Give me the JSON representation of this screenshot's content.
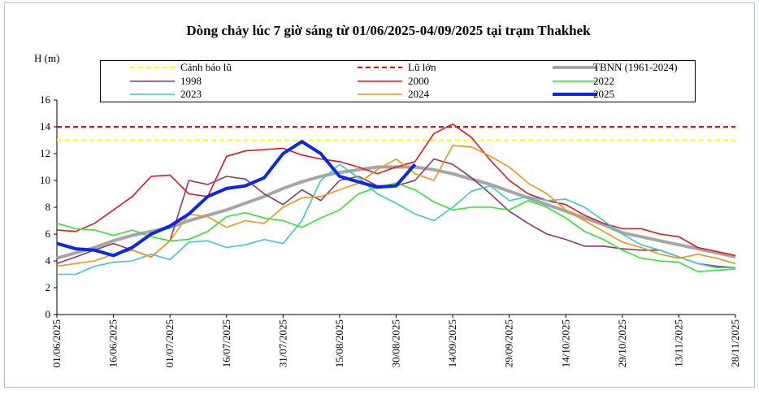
{
  "chart_data": {
    "type": "line",
    "title": "Dòng chảy lúc 7 giờ sáng từ 01/06/2025-04/09/2025 tại trạm Thakhek",
    "y_label": "H (m)",
    "x": [
      "01/06/2025",
      "06/06/2025",
      "11/06/2025",
      "16/06/2025",
      "21/06/2025",
      "26/06/2025",
      "01/07/2025",
      "06/07/2025",
      "11/07/2025",
      "16/07/2025",
      "21/07/2025",
      "26/07/2025",
      "31/07/2025",
      "05/08/2025",
      "10/08/2025",
      "15/08/2025",
      "20/08/2025",
      "25/08/2025",
      "30/08/2025",
      "04/09/2025",
      "09/09/2025",
      "14/09/2025",
      "19/09/2025",
      "24/09/2025",
      "29/09/2025",
      "04/10/2025",
      "09/10/2025",
      "14/10/2025",
      "19/10/2025",
      "24/10/2025",
      "29/10/2025",
      "03/11/2025",
      "08/11/2025",
      "13/11/2025",
      "18/11/2025",
      "23/11/2025",
      "28/11/2025"
    ],
    "xlim": [
      "01/06/2025",
      "28/11/2025"
    ],
    "xticks": [
      "01/06/2025",
      "16/06/2025",
      "01/07/2025",
      "16/07/2025",
      "31/07/2025",
      "15/08/2025",
      "30/08/2025",
      "14/09/2025",
      "29/09/2025",
      "14/10/2025",
      "29/10/2025",
      "13/11/2025",
      "28/11/2025"
    ],
    "ylim": [
      0,
      16
    ],
    "yticks": [
      0,
      2,
      4,
      6,
      8,
      10,
      12,
      14,
      16
    ],
    "grid": false,
    "reference_lines": [
      {
        "name": "Cảnh báo lũ",
        "value": 13,
        "color": "#ffff00"
      },
      {
        "name": "Lũ lớn",
        "value": 14,
        "color": "#ff0000"
      }
    ],
    "series": [
      {
        "name": "TBNN (1961-2024)",
        "color": "#a6a6a6",
        "width": 4,
        "values": [
          4.2,
          4.6,
          5.0,
          5.5,
          5.9,
          6.2,
          6.5,
          7.0,
          7.4,
          7.8,
          8.3,
          8.8,
          9.4,
          9.9,
          10.3,
          10.6,
          10.8,
          11.0,
          11.0,
          11.0,
          10.8,
          10.5,
          10.1,
          9.7,
          9.2,
          8.7,
          8.2,
          7.7,
          7.2,
          6.7,
          6.1,
          5.8,
          5.5,
          5.2,
          4.9,
          4.6,
          4.3
        ]
      },
      {
        "name": "1998",
        "color": "#8b3a6e",
        "width": 1.6,
        "values": [
          3.8,
          4.3,
          4.8,
          5.3,
          4.8,
          4.3,
          5.5,
          10.0,
          9.7,
          10.3,
          10.1,
          9.0,
          8.2,
          9.3,
          8.5,
          10.0,
          10.3,
          9.6,
          9.6,
          10.0,
          11.6,
          11.2,
          10.2,
          9.0,
          7.7,
          6.8,
          6.0,
          5.6,
          5.1,
          5.1,
          4.9,
          4.8,
          4.8,
          4.3,
          3.8,
          3.6,
          3.5
        ]
      },
      {
        "name": "2000",
        "color": "#e8141c",
        "width": 1.6,
        "values": [
          6.3,
          6.2,
          6.8,
          7.8,
          8.8,
          10.3,
          10.4,
          9.0,
          8.8,
          11.8,
          12.2,
          12.3,
          12.4,
          11.9,
          11.6,
          11.4,
          11.0,
          10.5,
          11.0,
          11.4,
          13.5,
          14.2,
          13.2,
          11.5,
          10.0,
          9.0,
          8.5,
          8.2,
          7.4,
          6.8,
          6.4,
          6.4,
          6.0,
          5.8,
          5.0,
          4.7,
          4.4
        ]
      },
      {
        "name": "2022",
        "color": "#2ee82e",
        "width": 1.6,
        "values": [
          6.8,
          6.4,
          6.3,
          5.9,
          6.3,
          5.8,
          5.5,
          5.6,
          6.2,
          7.3,
          7.6,
          7.2,
          7.0,
          6.5,
          7.2,
          7.8,
          9.0,
          9.5,
          9.8,
          9.3,
          8.4,
          7.8,
          8.0,
          8.0,
          7.8,
          8.5,
          8.0,
          7.2,
          6.2,
          5.6,
          4.8,
          4.2,
          4.0,
          3.9,
          3.2,
          3.3,
          3.4
        ]
      },
      {
        "name": "2023",
        "color": "#3cc8c8",
        "width": 1.6,
        "values": [
          3.0,
          3.0,
          3.6,
          3.9,
          4.0,
          4.5,
          4.1,
          5.4,
          5.5,
          5.0,
          5.2,
          5.6,
          5.3,
          7.0,
          10.0,
          11.2,
          10.2,
          9.0,
          8.3,
          7.5,
          7.0,
          8.0,
          9.2,
          9.6,
          8.5,
          8.8,
          8.5,
          8.6,
          8.0,
          7.0,
          6.0,
          5.2,
          4.8,
          4.3,
          3.8,
          3.5,
          3.5
        ]
      },
      {
        "name": "2024",
        "color": "#f0960f",
        "width": 1.6,
        "values": [
          3.6,
          3.8,
          4.0,
          4.5,
          4.8,
          4.3,
          5.5,
          7.5,
          7.3,
          6.5,
          7.0,
          6.8,
          8.0,
          8.7,
          8.8,
          9.3,
          9.8,
          10.8,
          11.6,
          10.5,
          10.0,
          12.6,
          12.5,
          11.8,
          11.0,
          9.8,
          9.0,
          7.8,
          7.0,
          6.2,
          5.4,
          5.0,
          4.5,
          4.2,
          4.5,
          4.2,
          3.8
        ]
      },
      {
        "name": "2025",
        "color": "#0a28e6",
        "width": 4,
        "values": [
          5.3,
          4.9,
          4.8,
          4.4,
          5.0,
          6.0,
          6.6,
          7.5,
          8.8,
          9.4,
          9.6,
          10.2,
          12.0,
          12.9,
          12.0,
          10.3,
          9.9,
          9.5,
          9.6,
          11.2,
          null,
          null,
          null,
          null,
          null,
          null,
          null,
          null,
          null,
          null,
          null,
          null,
          null,
          null,
          null,
          null,
          null
        ]
      }
    ]
  }
}
